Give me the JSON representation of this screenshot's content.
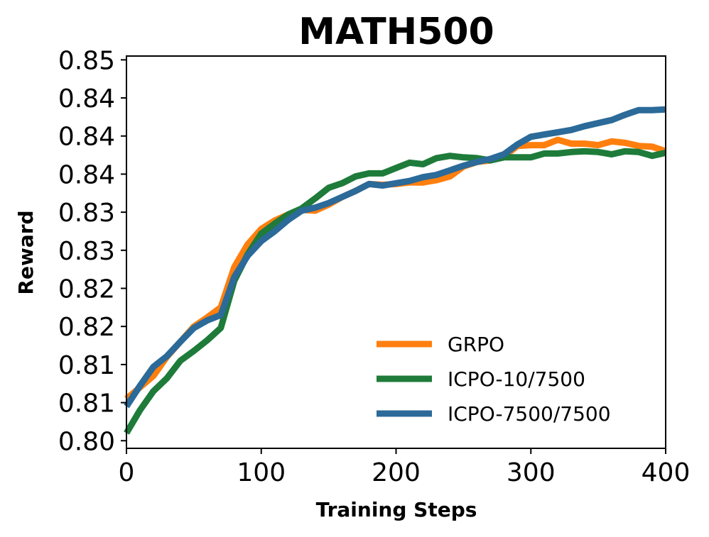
{
  "chart_data": {
    "type": "line",
    "title": "MATH500",
    "xlabel": "Training Steps",
    "ylabel": "Reward",
    "xlim": [
      0,
      400
    ],
    "ylim": [
      0.799,
      0.8505
    ],
    "xticks": [
      0,
      100,
      200,
      300,
      400
    ],
    "xtick_labels": [
      "0",
      "100",
      "200",
      "300",
      "400"
    ],
    "yticks": [
      0.8,
      0.805,
      0.81,
      0.815,
      0.82,
      0.825,
      0.83,
      0.835,
      0.84,
      0.845,
      0.85
    ],
    "ytick_labels": [
      "0.80",
      "0.81",
      "0.81",
      "0.82",
      "0.82",
      "0.83",
      "0.83",
      "0.84",
      "0.84",
      "0.84",
      "0.85"
    ],
    "grid": false,
    "legend_position": "lower-right",
    "series": [
      {
        "name": "GRPO",
        "color": "#ff7f0e",
        "x": [
          0,
          10,
          20,
          30,
          40,
          50,
          60,
          70,
          80,
          90,
          100,
          110,
          120,
          130,
          140,
          150,
          160,
          170,
          180,
          190,
          200,
          210,
          220,
          230,
          240,
          250,
          260,
          270,
          280,
          290,
          300,
          310,
          320,
          330,
          340,
          350,
          360,
          370,
          380,
          390,
          400
        ],
        "y": [
          0.8055,
          0.807,
          0.8085,
          0.811,
          0.813,
          0.815,
          0.8162,
          0.8175,
          0.8228,
          0.8258,
          0.8278,
          0.8289,
          0.8297,
          0.8303,
          0.8302,
          0.831,
          0.832,
          0.8328,
          0.8337,
          0.8336,
          0.8337,
          0.8339,
          0.8339,
          0.8342,
          0.8347,
          0.836,
          0.8366,
          0.8368,
          0.8373,
          0.8387,
          0.8388,
          0.8388,
          0.8395,
          0.839,
          0.839,
          0.8388,
          0.8393,
          0.8391,
          0.8387,
          0.8386,
          0.838
        ]
      },
      {
        "name": "ICPO-10/7500",
        "color": "#1e7b3a",
        "x": [
          0,
          10,
          20,
          30,
          40,
          50,
          60,
          70,
          80,
          90,
          100,
          110,
          120,
          130,
          140,
          150,
          160,
          170,
          180,
          190,
          200,
          210,
          220,
          230,
          240,
          250,
          260,
          270,
          280,
          290,
          300,
          310,
          320,
          330,
          340,
          350,
          360,
          370,
          380,
          390,
          400
        ],
        "y": [
          0.801,
          0.804,
          0.8065,
          0.8082,
          0.8105,
          0.8118,
          0.8132,
          0.8148,
          0.821,
          0.8245,
          0.8272,
          0.8285,
          0.8297,
          0.8305,
          0.8318,
          0.8332,
          0.8338,
          0.8347,
          0.8351,
          0.8351,
          0.8358,
          0.8365,
          0.8363,
          0.8371,
          0.8374,
          0.8372,
          0.8371,
          0.8368,
          0.8372,
          0.8372,
          0.8372,
          0.8377,
          0.8377,
          0.8379,
          0.838,
          0.8379,
          0.8376,
          0.838,
          0.8379,
          0.8374,
          0.8378
        ]
      },
      {
        "name": "ICPO-7500/7500",
        "color": "#2b6a99",
        "x": [
          0,
          10,
          20,
          30,
          40,
          50,
          60,
          70,
          80,
          90,
          100,
          110,
          120,
          130,
          140,
          150,
          160,
          170,
          180,
          190,
          200,
          210,
          220,
          230,
          240,
          250,
          260,
          270,
          280,
          290,
          300,
          310,
          320,
          330,
          340,
          350,
          360,
          370,
          380,
          390,
          400
        ],
        "y": [
          0.8045,
          0.8072,
          0.8097,
          0.8111,
          0.813,
          0.8148,
          0.8158,
          0.8165,
          0.8215,
          0.8243,
          0.8262,
          0.8275,
          0.829,
          0.8302,
          0.8306,
          0.8312,
          0.832,
          0.8328,
          0.8337,
          0.8335,
          0.8338,
          0.8341,
          0.8346,
          0.8349,
          0.8355,
          0.8361,
          0.8366,
          0.837,
          0.8376,
          0.8389,
          0.8399,
          0.8402,
          0.8405,
          0.8408,
          0.8413,
          0.8417,
          0.8421,
          0.8428,
          0.8434,
          0.8434,
          0.8435
        ]
      }
    ]
  }
}
